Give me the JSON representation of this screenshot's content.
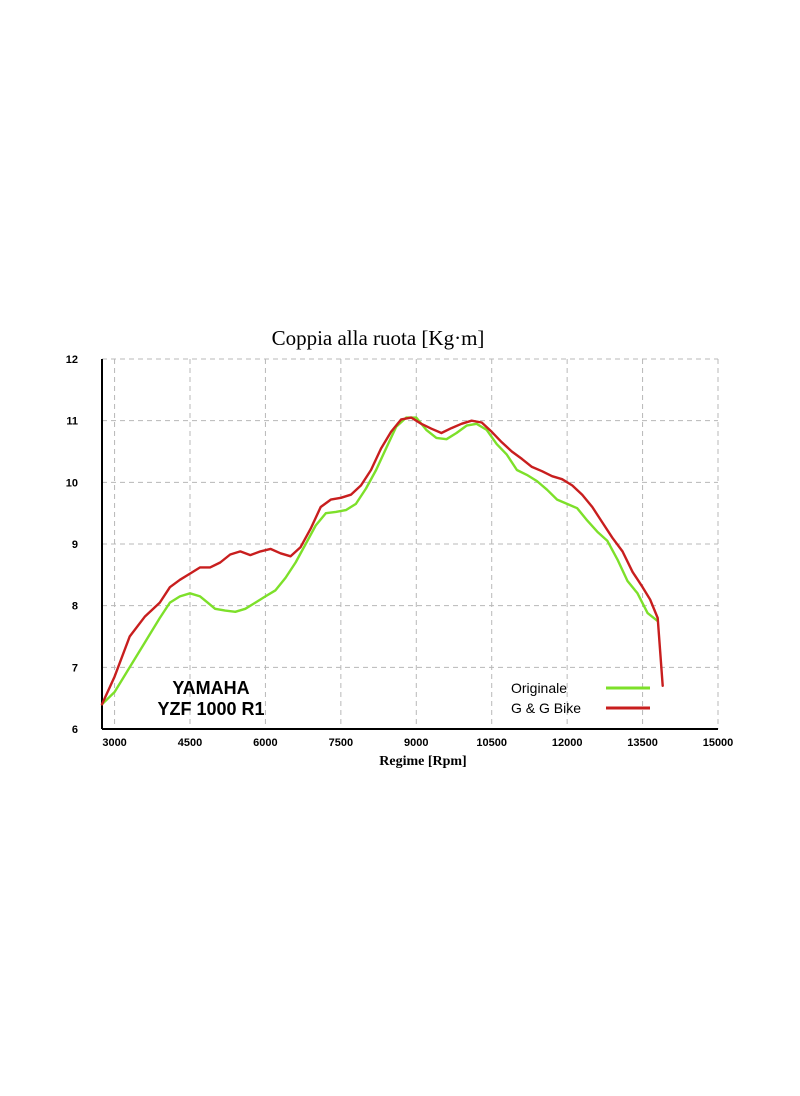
{
  "chart_data": {
    "type": "line",
    "title": "Coppia alla ruota [Kg·m]",
    "xlabel": "Regime [Rpm]",
    "ylabel": "",
    "xlim": [
      2750,
      15000
    ],
    "ylim": [
      6,
      12
    ],
    "x_ticks": [
      "3000",
      "4500",
      "6000",
      "7500",
      "9000",
      "10500",
      "12000",
      "13500",
      "15000"
    ],
    "y_ticks": [
      "6",
      "7",
      "8",
      "9",
      "10",
      "11",
      "12"
    ],
    "grid": true,
    "grid_style": "dashed",
    "legend_position": "bottom-right",
    "annotation": [
      "YAMAHA",
      "YZF 1000 R1"
    ],
    "series": [
      {
        "name": "Originale",
        "color": "#7de02a",
        "x": [
          2750,
          3000,
          3300,
          3600,
          3900,
          4100,
          4300,
          4500,
          4700,
          4850,
          5000,
          5200,
          5400,
          5600,
          5800,
          6000,
          6200,
          6400,
          6600,
          6800,
          7000,
          7200,
          7400,
          7600,
          7800,
          8000,
          8200,
          8400,
          8600,
          8800,
          9000,
          9200,
          9400,
          9600,
          9800,
          10000,
          10200,
          10400,
          10600,
          10800,
          11000,
          11200,
          11400,
          11600,
          11800,
          12000,
          12200,
          12400,
          12600,
          12800,
          13000,
          13200,
          13400,
          13600,
          13800
        ],
        "values": [
          6.4,
          6.6,
          7.0,
          7.4,
          7.8,
          8.05,
          8.15,
          8.2,
          8.15,
          8.05,
          7.95,
          7.92,
          7.9,
          7.95,
          8.05,
          8.15,
          8.25,
          8.45,
          8.7,
          9.0,
          9.3,
          9.5,
          9.52,
          9.55,
          9.65,
          9.9,
          10.2,
          10.55,
          10.9,
          11.05,
          11.05,
          10.85,
          10.72,
          10.7,
          10.8,
          10.92,
          10.95,
          10.85,
          10.62,
          10.45,
          10.2,
          10.12,
          10.02,
          9.88,
          9.72,
          9.65,
          9.58,
          9.38,
          9.2,
          9.05,
          8.75,
          8.4,
          8.2,
          7.88,
          7.75
        ]
      },
      {
        "name": "G & G Bike",
        "color": "#c81e1e",
        "x": [
          2750,
          3000,
          3300,
          3600,
          3900,
          4100,
          4300,
          4500,
          4700,
          4900,
          5100,
          5300,
          5500,
          5700,
          5900,
          6100,
          6300,
          6500,
          6700,
          6900,
          7100,
          7300,
          7500,
          7700,
          7900,
          8100,
          8300,
          8500,
          8700,
          8900,
          9100,
          9300,
          9500,
          9700,
          9900,
          10100,
          10300,
          10500,
          10700,
          10900,
          11100,
          11300,
          11500,
          11700,
          11900,
          12100,
          12300,
          12500,
          12700,
          12900,
          13100,
          13300,
          13500,
          13650,
          13800,
          13850,
          13900
        ],
        "values": [
          6.4,
          6.85,
          7.5,
          7.82,
          8.05,
          8.3,
          8.42,
          8.52,
          8.62,
          8.62,
          8.7,
          8.83,
          8.88,
          8.82,
          8.88,
          8.92,
          8.85,
          8.8,
          8.95,
          9.25,
          9.6,
          9.72,
          9.75,
          9.8,
          9.95,
          10.2,
          10.55,
          10.82,
          11.02,
          11.05,
          10.95,
          10.87,
          10.8,
          10.88,
          10.95,
          11.0,
          10.97,
          10.82,
          10.65,
          10.5,
          10.38,
          10.25,
          10.18,
          10.1,
          10.05,
          9.95,
          9.8,
          9.6,
          9.35,
          9.1,
          8.88,
          8.55,
          8.3,
          8.1,
          7.8,
          7.25,
          6.7
        ]
      }
    ]
  }
}
